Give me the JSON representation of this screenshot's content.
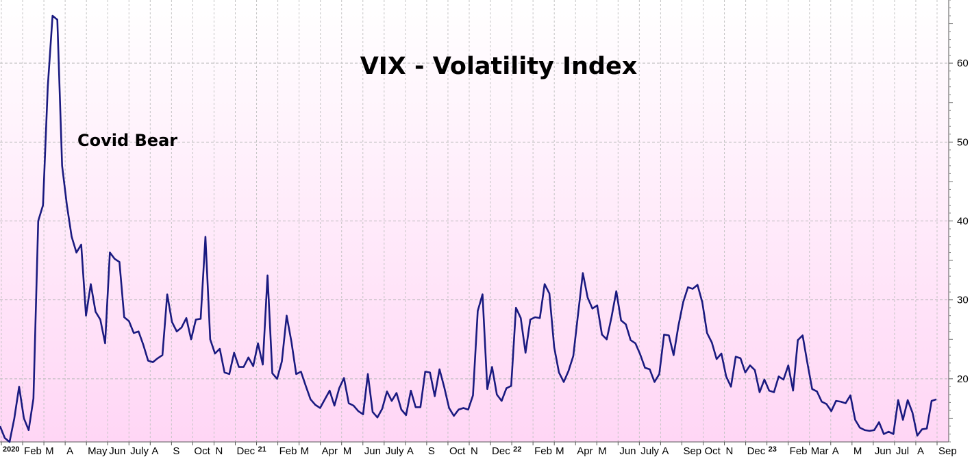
{
  "chart_data": {
    "type": "line",
    "title": "VIX - Volatility Index",
    "annotation": "Covid Bear",
    "xlabel": "",
    "ylabel": "",
    "ylim": [
      12,
      68
    ],
    "y_ticks": [
      20,
      30,
      40,
      50,
      60
    ],
    "grid": true,
    "background_gradient": [
      "#ffffff",
      "#ffd6f5"
    ],
    "line_color": "#1a1a80",
    "x_tick_labels": [
      "2020",
      "Feb",
      "M",
      "A",
      "May",
      "Jun",
      "July",
      "A",
      "S",
      "Oct",
      "N",
      "Dec",
      "21",
      "Feb",
      "M",
      "Apr",
      "M",
      "Jun",
      "July",
      "A",
      "S",
      "Oct",
      "N",
      "Dec",
      "22",
      "Feb",
      "M",
      "Apr",
      "M",
      "Jun",
      "July",
      "A",
      "Sep",
      "Oct",
      "N",
      "Dec",
      "23",
      "Feb",
      "Mar",
      "A",
      "M",
      "Jun",
      "Jul",
      "A",
      "Sep"
    ],
    "year_labels": [
      "2020",
      "21",
      "22",
      "23"
    ],
    "series": [
      {
        "name": "VIX",
        "values": [
          14.0,
          12.5,
          12.0,
          15.0,
          19.0,
          15.0,
          13.5,
          17.5,
          40.0,
          42.0,
          57.0,
          66.0,
          65.5,
          47.0,
          42.0,
          38.0,
          36.0,
          37.0,
          28.0,
          32.0,
          28.5,
          27.5,
          24.5,
          36.0,
          35.2,
          34.8,
          27.8,
          27.3,
          25.8,
          26.0,
          24.3,
          22.3,
          22.1,
          22.6,
          23.0,
          30.7,
          27.2,
          26.0,
          26.5,
          27.7,
          25.0,
          27.5,
          27.6,
          38.0,
          25.0,
          23.2,
          23.8,
          20.8,
          20.6,
          23.3,
          21.5,
          21.5,
          22.7,
          21.6,
          24.5,
          21.8,
          33.1,
          20.7,
          20.0,
          22.2,
          28.0,
          24.7,
          20.6,
          20.9,
          19.1,
          17.4,
          16.7,
          16.3,
          17.4,
          18.5,
          16.6,
          18.8,
          20.1,
          16.9,
          16.6,
          15.9,
          15.5,
          20.6,
          15.8,
          15.1,
          16.2,
          18.4,
          17.2,
          18.2,
          16.1,
          15.4,
          18.5,
          16.4,
          16.4,
          20.9,
          20.8,
          17.8,
          21.2,
          18.9,
          16.3,
          15.3,
          16.1,
          16.3,
          16.1,
          17.9,
          28.6,
          30.7,
          18.7,
          21.5,
          18.0,
          17.2,
          18.8,
          19.1,
          29.0,
          27.7,
          23.3,
          27.5,
          27.8,
          27.7,
          32.0,
          30.8,
          24.0,
          20.8,
          19.6,
          21.0,
          22.9,
          28.2,
          33.4,
          30.3,
          28.9,
          29.3,
          25.6,
          25.0,
          27.8,
          31.1,
          27.4,
          26.9,
          24.9,
          24.5,
          23.1,
          21.4,
          21.2,
          19.6,
          20.6,
          25.6,
          25.5,
          23.0,
          26.7,
          29.7,
          31.6,
          31.4,
          31.9,
          29.7,
          25.8,
          24.6,
          22.5,
          23.2,
          20.3,
          19.0,
          22.8,
          22.6,
          20.8,
          21.7,
          21.1,
          18.3,
          19.9,
          18.5,
          18.3,
          20.3,
          19.9,
          21.7,
          18.5,
          24.9,
          25.5,
          22.0,
          18.7,
          18.4,
          17.1,
          16.8,
          15.9,
          17.2,
          17.1,
          16.9,
          17.9,
          14.8,
          13.8,
          13.5,
          13.4,
          13.5,
          14.5,
          13.0,
          13.3,
          13.0,
          17.3,
          14.8,
          17.3,
          15.7,
          12.8,
          13.6,
          13.7,
          17.2,
          17.4
        ]
      }
    ]
  }
}
